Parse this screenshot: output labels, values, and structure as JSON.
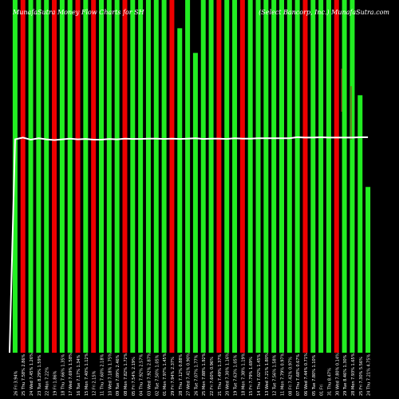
{
  "header": {
    "left": "MunafaSutra Money Flow Charts for SH",
    "right": "(Select Bancorp, Inc.) MunafaSutra.com"
  },
  "colors": {
    "up": "#22ee22",
    "down": "#ee0000",
    "line": "#ffffff",
    "background": "#000000"
  },
  "chart_data": {
    "type": "bar",
    "title": "",
    "xlabel": "",
    "ylabel": "",
    "ylim": [
      0,
      100
    ],
    "categories": [
      "26 Fri 3.94%",
      "25 Thu 7.58% 2.86%",
      "24 Wed 7.45% 1.26%",
      "23 Tue 8.29% 1.59%",
      "22 Mon 7.22%",
      "19 Fri 1.86%",
      "18 Thu 7.66% 1.35%",
      "17 Wed 7.69% 1.58%",
      "16 Tue 7.17% 1.34%",
      "15 Mon 7.40% 1.12%",
      "12 Fri 2.15%",
      "11 Thu 7.60% 2.18%",
      "10 Wed 7.18% 1.75%",
      "09 Tue 7.09% 2.46%",
      "08 Mon 7.82% 1.72%",
      "05 Fri 7.54% 2.19%",
      "04 Thu 7.92% 2.57%",
      "03 Wed 7.92% 2.87%",
      "02 Tue 7.50% 1.05%",
      "01 Mon 7.97% 1.45%",
      "29 Fri 7.94% 2.37%",
      "28 Thu 7.12% 0.88%",
      "27 Wed 7.41% 0.90%",
      "26 Tue 7.07% 1.77%",
      "25 Mon 7.88% 1.92%",
      "22 Fri 7.60% 0.96%",
      "21 Thu 7.49% 1.37%",
      "20 Wed 7.30% 1.16%",
      "19 Tue 7.63% 1.05%",
      "18 Mon 7.38% 1.19%",
      "15 Fri 7.79% 1.69%",
      "14 Thu 7.02% 1.45%",
      "13 Wed 7.21% 1.80%",
      "12 Tue 7.56% 1.58%",
      "11 Mon 7.79% 0.97%",
      "08 Fri 7.42% 0.97%",
      "07 Thu 7.68% 0.67%",
      "06 Wed 7.44% 0.71%",
      "05 Tue 7.80% 1.10%",
      "01 Fri",
      "31 Thu 8.47%",
      "30 Wed 7.80% 0.14%",
      "29 Tue 8.46% 1.30%",
      "28 Mon 7.93% 1.65%",
      "25 Fri 7.30% 5.56%",
      "24 Thu 7.21% 4.75%"
    ],
    "series": [
      {
        "values": [
          100,
          100,
          100,
          100,
          100,
          100,
          100,
          100,
          100,
          100,
          100,
          100,
          100,
          100,
          100,
          100,
          100,
          100,
          100,
          100,
          100,
          92,
          100,
          85,
          100,
          100,
          100,
          100,
          100,
          100,
          100,
          100,
          100,
          100,
          100,
          100,
          100,
          100,
          100,
          100,
          100,
          100,
          100,
          100,
          73,
          47
        ],
        "direction": [
          "up",
          "down",
          "up",
          "up",
          "up",
          "down",
          "up",
          "up",
          "down",
          "up",
          "down",
          "up",
          "up",
          "up",
          "down",
          "up",
          "up",
          "up",
          "up",
          "up",
          "down",
          "up",
          "up",
          "up",
          "up",
          "up",
          "down",
          "up",
          "up",
          "down",
          "up",
          "up",
          "up",
          "up",
          "up",
          "up",
          "up",
          "down",
          "up",
          "up",
          "up",
          "down",
          "up",
          "up",
          "up",
          "up"
        ]
      },
      {
        "values": [
          60.5,
          61.0,
          60.4,
          60.8,
          60.5,
          60.3,
          60.5,
          60.7,
          60.5,
          60.6,
          60.4,
          60.4,
          60.6,
          60.5,
          60.7,
          60.6,
          60.6,
          60.7,
          60.7,
          60.6,
          60.7,
          60.6,
          60.7,
          60.8,
          60.6,
          60.7,
          60.7,
          60.6,
          60.8,
          60.7,
          60.7,
          60.8,
          60.8,
          60.8,
          60.8,
          60.8,
          61.1,
          61.0,
          61.0,
          61.1,
          61.0,
          61.0,
          61.0,
          61.0,
          61.1,
          61.1
        ],
        "start": 0
      }
    ]
  }
}
